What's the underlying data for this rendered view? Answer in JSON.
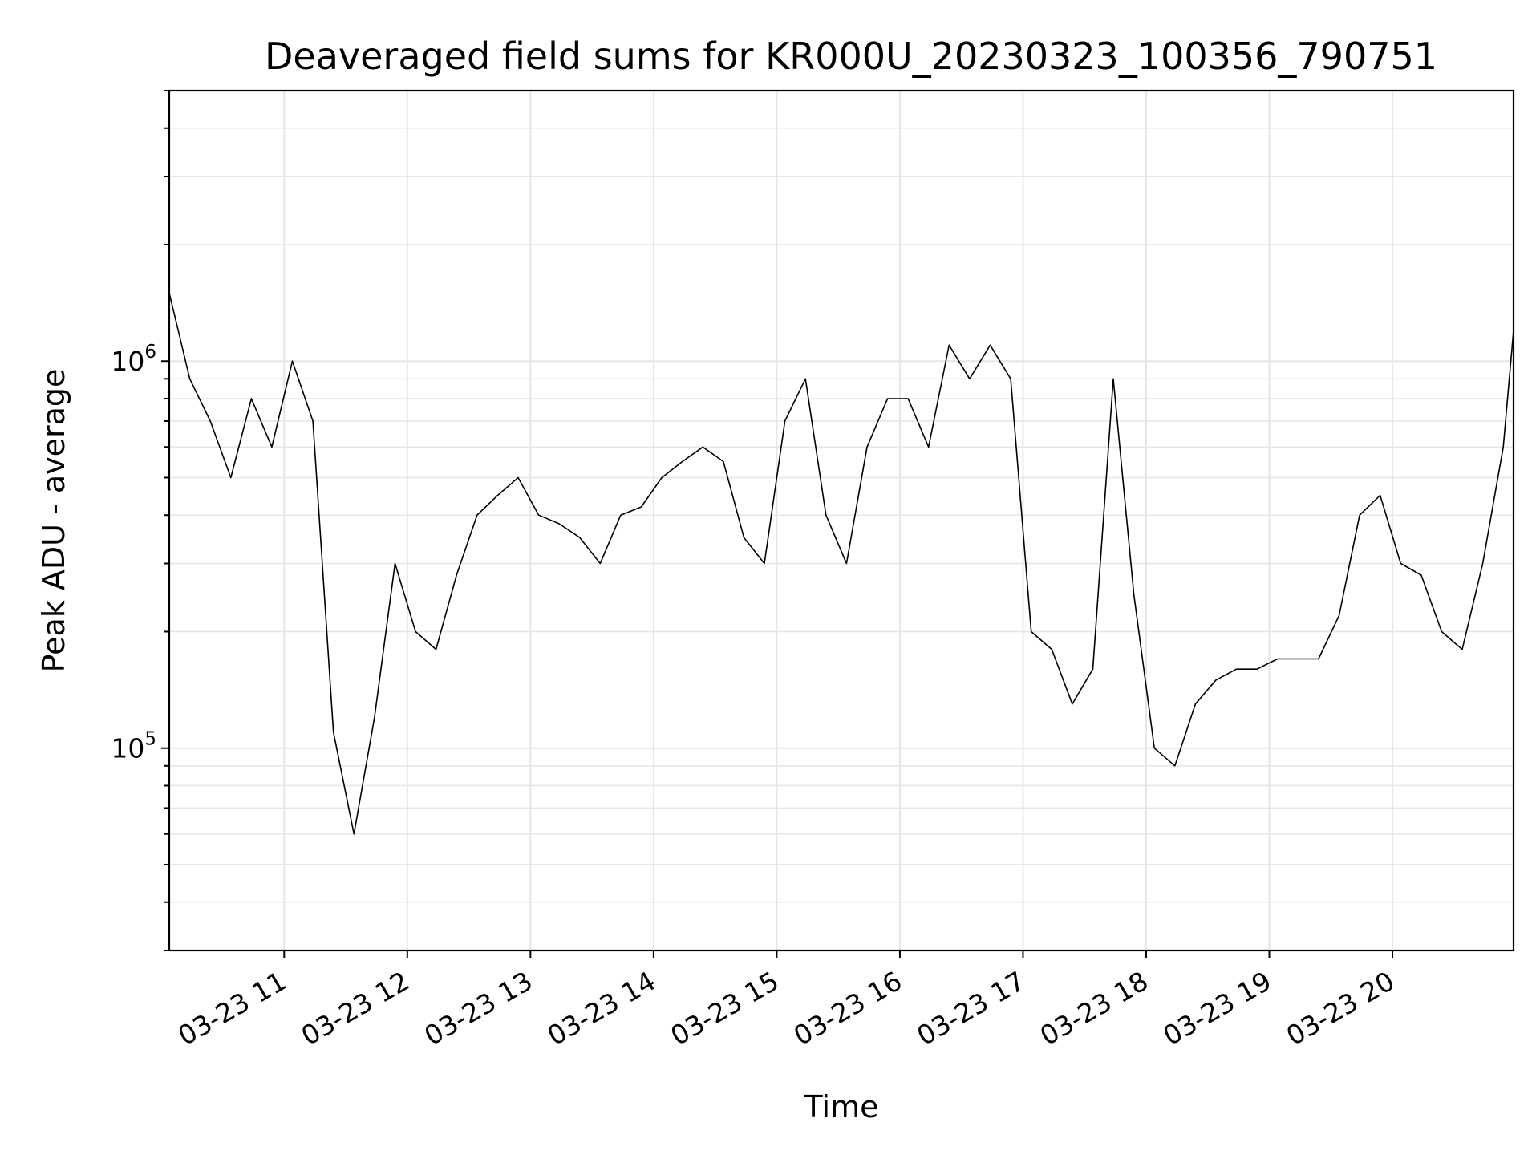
{
  "chart_data": {
    "type": "line",
    "title": "Deaveraged field sums for KR000U_20230323_100356_790751",
    "xlabel": "Time",
    "ylabel": "Peak ADU - average",
    "x_ticks": [
      "03-23 11",
      "03-23 12",
      "03-23 13",
      "03-23 14",
      "03-23 15",
      "03-23 16",
      "03-23 17",
      "03-23 18",
      "03-23 19",
      "03-23 20"
    ],
    "xlim": [
      "2023-03-23 10:04",
      "2023-03-23 20:59"
    ],
    "y_scale": "log",
    "ylim": [
      30000,
      5000000
    ],
    "y_major_ticks": [
      {
        "value": 100000,
        "base": "10",
        "exp": "5"
      },
      {
        "value": 1000000,
        "base": "10",
        "exp": "6"
      }
    ],
    "grid": true,
    "line_color": "#000000",
    "grid_color": "#e6e6e6",
    "series": [
      {
        "x": [
          "10:04",
          "10:14",
          "10:24",
          "10:34",
          "10:44",
          "10:54",
          "11:04",
          "11:14",
          "11:24",
          "11:34",
          "11:44",
          "11:54",
          "12:04",
          "12:14",
          "12:24",
          "12:34",
          "12:44",
          "12:54",
          "13:04",
          "13:14",
          "13:24",
          "13:34",
          "13:44",
          "13:54",
          "14:04",
          "14:14",
          "14:24",
          "14:34",
          "14:44",
          "14:54",
          "15:04",
          "15:14",
          "15:24",
          "15:34",
          "15:44",
          "15:54",
          "16:04",
          "16:14",
          "16:24",
          "16:34",
          "16:44",
          "16:54",
          "17:04",
          "17:14",
          "17:24",
          "17:34",
          "17:44",
          "17:54",
          "18:04",
          "18:14",
          "18:24",
          "18:34",
          "18:44",
          "18:54",
          "19:04",
          "19:14",
          "19:24",
          "19:34",
          "19:44",
          "19:54",
          "20:04",
          "20:14",
          "20:24",
          "20:34",
          "20:44",
          "20:54",
          "20:59"
        ],
        "y": [
          1500000,
          900000,
          700000,
          500000,
          800000,
          600000,
          1000000,
          700000,
          110000,
          60000,
          120000,
          300000,
          200000,
          180000,
          280000,
          400000,
          450000,
          500000,
          400000,
          380000,
          350000,
          300000,
          400000,
          420000,
          500000,
          550000,
          600000,
          550000,
          350000,
          300000,
          700000,
          900000,
          400000,
          300000,
          600000,
          800000,
          800000,
          600000,
          1100000,
          900000,
          1100000,
          900000,
          200000,
          180000,
          130000,
          160000,
          900000,
          250000,
          100000,
          90000,
          130000,
          150000,
          160000,
          160000,
          170000,
          170000,
          170000,
          220000,
          400000,
          450000,
          300000,
          280000,
          200000,
          180000,
          300000,
          600000,
          1200000
        ]
      }
    ]
  }
}
